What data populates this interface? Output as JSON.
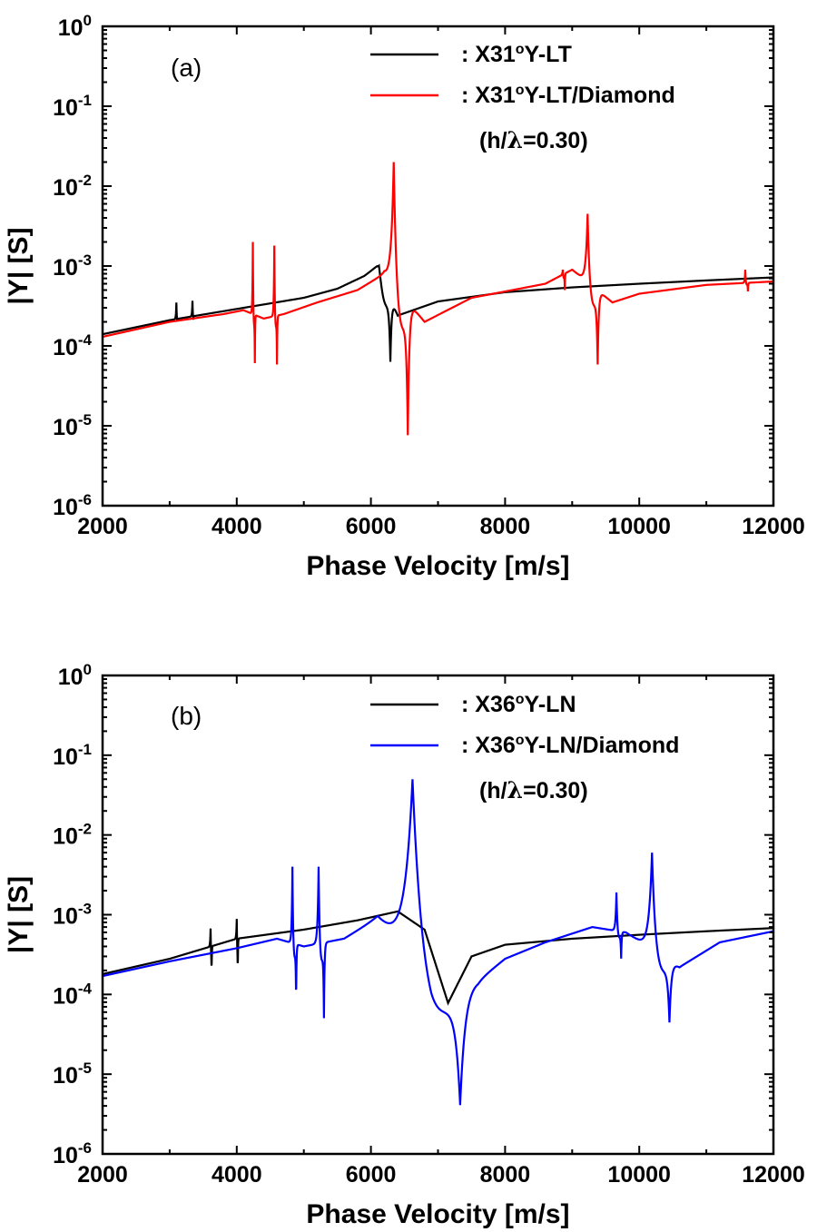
{
  "chart_data": [
    {
      "panel": "(a)",
      "type": "line",
      "xlabel": "Phase  Velocity  [m/s]",
      "ylabel": "|Y|  [S]",
      "xlim": [
        2000,
        12000
      ],
      "ylim": [
        1e-06,
        1
      ],
      "yscale": "log",
      "xticks": [
        "2000",
        "4000",
        "6000",
        "8000",
        "10000",
        "12000"
      ],
      "yticks": [
        {
          "base": "10",
          "exp": "0"
        },
        {
          "base": "10",
          "exp": "-1"
        },
        {
          "base": "10",
          "exp": "-2"
        },
        {
          "base": "10",
          "exp": "-3"
        },
        {
          "base": "10",
          "exp": "-4"
        },
        {
          "base": "10",
          "exp": "-5"
        },
        {
          "base": "10",
          "exp": "-6"
        }
      ],
      "legend": {
        "position": "top-right",
        "entries": [
          {
            "prefix": ":  X31",
            "degree": "o",
            "suffix": "Y-LT",
            "color": "#000000"
          },
          {
            "prefix": ":  X31",
            "degree": "o",
            "suffix": "Y-LT/Diamond",
            "color": "#ff0000"
          }
        ],
        "note_prefix": "(h/",
        "note_symbol": "λ",
        "note_suffix": "=0.30)"
      },
      "series": [
        {
          "name": ":  X31oY-LT",
          "color": "#000000",
          "base_points": [
            [
              2000,
              0.00014
            ],
            [
              3000,
              0.00021
            ],
            [
              4000,
              0.00029
            ],
            [
              5000,
              0.0004
            ],
            [
              5500,
              0.00052
            ],
            [
              5900,
              0.00075
            ],
            [
              6100,
              0.001
            ],
            [
              6400,
              0.00024
            ],
            [
              7000,
              0.00036
            ],
            [
              8000,
              0.00047
            ],
            [
              9000,
              0.00054
            ],
            [
              10000,
              0.0006
            ],
            [
              11000,
              0.00066
            ],
            [
              12000,
              0.00072
            ]
          ],
          "resonances": [
            {
              "fr": 3100,
              "fa": 3112,
              "peak": 0.00035,
              "dip": 0.00019
            },
            {
              "fr": 3340,
              "fa": 3352,
              "peak": 0.00037,
              "dip": 0.00019
            },
            {
              "fr": 6120,
              "fa": 6290,
              "peak": 0.001,
              "dip": 6.3e-05
            }
          ]
        },
        {
          "name": ":  X31oY-LT/Diamond",
          "color": "#ff0000",
          "base_points": [
            [
              2000,
              0.00013
            ],
            [
              3000,
              0.0002
            ],
            [
              3800,
              0.00025
            ],
            [
              4100,
              0.00028
            ],
            [
              4400,
              0.00022
            ],
            [
              4700,
              0.00025
            ],
            [
              5200,
              0.00035
            ],
            [
              5800,
              0.0005
            ],
            [
              6200,
              0.0008
            ],
            [
              6800,
              0.0002
            ],
            [
              7500,
              0.0004
            ],
            [
              8000,
              0.00048
            ],
            [
              8600,
              0.0006
            ],
            [
              9000,
              0.0009
            ],
            [
              9600,
              0.00035
            ],
            [
              10000,
              0.00045
            ],
            [
              11000,
              0.00058
            ],
            [
              12000,
              0.00064
            ]
          ],
          "resonances": [
            {
              "fr": 4240,
              "fa": 4270,
              "peak": 0.002,
              "dip": 6e-05
            },
            {
              "fr": 4560,
              "fa": 4600,
              "peak": 0.0018,
              "dip": 5.8e-05
            },
            {
              "fr": 6340,
              "fa": 6550,
              "peak": 0.02,
              "dip": 7.5e-06
            },
            {
              "fr": 8860,
              "fa": 8890,
              "peak": 0.0009,
              "dip": 0.0005
            },
            {
              "fr": 9230,
              "fa": 9380,
              "peak": 0.0045,
              "dip": 5.8e-05
            },
            {
              "fr": 11580,
              "fa": 11620,
              "peak": 0.0009,
              "dip": 0.00048
            }
          ]
        }
      ]
    },
    {
      "panel": "(b)",
      "type": "line",
      "xlabel": "Phase  Velocity  [m/s]",
      "ylabel": "|Y|  [S]",
      "xlim": [
        2000,
        12000
      ],
      "ylim": [
        1e-06,
        1
      ],
      "yscale": "log",
      "xticks": [
        "2000",
        "4000",
        "6000",
        "8000",
        "10000",
        "12000"
      ],
      "yticks": [
        {
          "base": "10",
          "exp": "0"
        },
        {
          "base": "10",
          "exp": "-1"
        },
        {
          "base": "10",
          "exp": "-2"
        },
        {
          "base": "10",
          "exp": "-3"
        },
        {
          "base": "10",
          "exp": "-4"
        },
        {
          "base": "10",
          "exp": "-5"
        },
        {
          "base": "10",
          "exp": "-6"
        }
      ],
      "legend": {
        "position": "top-right",
        "entries": [
          {
            "prefix": ":  X36",
            "degree": "o",
            "suffix": "Y-LN",
            "color": "#000000"
          },
          {
            "prefix": ":  X36",
            "degree": "o",
            "suffix": "Y-LN/Diamond",
            "color": "#0000ff"
          }
        ],
        "note_prefix": "(h/",
        "note_symbol": "λ",
        "note_suffix": "=0.30)"
      },
      "series": [
        {
          "name": ":  X36oY-LN",
          "color": "#000000",
          "base_points": [
            [
              2000,
              0.00018
            ],
            [
              3000,
              0.00028
            ],
            [
              4000,
              0.0005
            ],
            [
              5000,
              0.00065
            ],
            [
              5800,
              0.00085
            ],
            [
              6400,
              0.0011
            ],
            [
              6800,
              0.00065
            ],
            [
              7150,
              7.8e-05
            ],
            [
              7500,
              0.0003
            ],
            [
              8000,
              0.00042
            ],
            [
              9000,
              0.0005
            ],
            [
              10000,
              0.00056
            ],
            [
              11000,
              0.00062
            ],
            [
              12000,
              0.00068
            ]
          ],
          "resonances": [
            {
              "fr": 3610,
              "fa": 3625,
              "peak": 0.00068,
              "dip": 0.00017
            },
            {
              "fr": 4000,
              "fa": 4015,
              "peak": 0.0009,
              "dip": 0.00017
            }
          ]
        },
        {
          "name": ":  X36oY-LN/Diamond",
          "color": "#0000ff",
          "base_points": [
            [
              2000,
              0.00017
            ],
            [
              3000,
              0.00026
            ],
            [
              4000,
              0.00038
            ],
            [
              4600,
              0.0005
            ],
            [
              5000,
              0.0004
            ],
            [
              5600,
              0.0005
            ],
            [
              6100,
              0.0009
            ],
            [
              6900,
              0.00012
            ],
            [
              7600,
              0.00015
            ],
            [
              8000,
              0.00028
            ],
            [
              8600,
              0.00045
            ],
            [
              9300,
              0.0007
            ],
            [
              9800,
              0.0006
            ],
            [
              10600,
              0.00022
            ],
            [
              11200,
              0.00045
            ],
            [
              12000,
              0.00062
            ]
          ],
          "resonances": [
            {
              "fr": 4830,
              "fa": 4885,
              "peak": 0.004,
              "dip": 7.8e-05
            },
            {
              "fr": 5220,
              "fa": 5300,
              "peak": 0.004,
              "dip": 5e-05
            },
            {
              "fr": 6620,
              "fa": 7330,
              "peak": 0.05,
              "dip": 4e-06
            },
            {
              "fr": 9660,
              "fa": 9730,
              "peak": 0.0019,
              "dip": 0.00028
            },
            {
              "fr": 10190,
              "fa": 10450,
              "peak": 0.006,
              "dip": 4.4e-05
            }
          ]
        }
      ]
    }
  ]
}
